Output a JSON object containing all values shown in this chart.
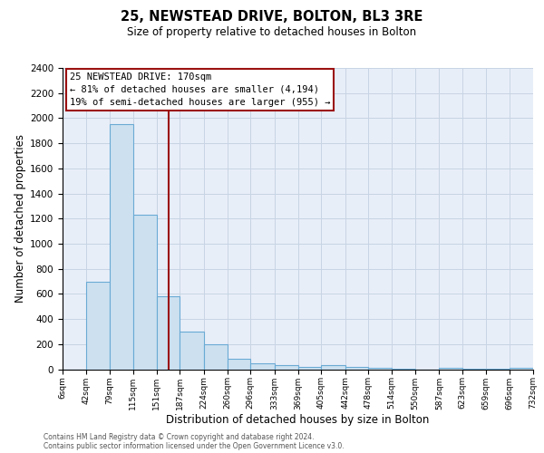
{
  "title": "25, NEWSTEAD DRIVE, BOLTON, BL3 3RE",
  "subtitle": "Size of property relative to detached houses in Bolton",
  "xlabel": "Distribution of detached houses by size in Bolton",
  "ylabel": "Number of detached properties",
  "bar_color": "#cce0f0",
  "bar_edge_color": "#6aaad4",
  "grid_color": "#c8d4e4",
  "background_color": "#e8eef8",
  "vline_x": 170,
  "vline_color": "#9b1111",
  "annotation_title": "25 NEWSTEAD DRIVE: 170sqm",
  "annotation_line1": "← 81% of detached houses are smaller (4,194)",
  "annotation_line2": "19% of semi-detached houses are larger (955) →",
  "ylim_max": 2400,
  "bin_edges": [
    6,
    42,
    79,
    115,
    151,
    187,
    224,
    260,
    296,
    333,
    369,
    405,
    442,
    478,
    514,
    550,
    587,
    623,
    659,
    696,
    732
  ],
  "bar_heights": [
    0,
    700,
    1950,
    1230,
    580,
    300,
    200,
    80,
    50,
    30,
    20,
    30,
    15,
    10,
    5,
    0,
    10,
    5,
    5,
    10
  ],
  "yticks": [
    0,
    200,
    400,
    600,
    800,
    1000,
    1200,
    1400,
    1600,
    1800,
    2000,
    2200,
    2400
  ],
  "footer_line1": "Contains HM Land Registry data © Crown copyright and database right 2024.",
  "footer_line2": "Contains public sector information licensed under the Open Government Licence v3.0."
}
